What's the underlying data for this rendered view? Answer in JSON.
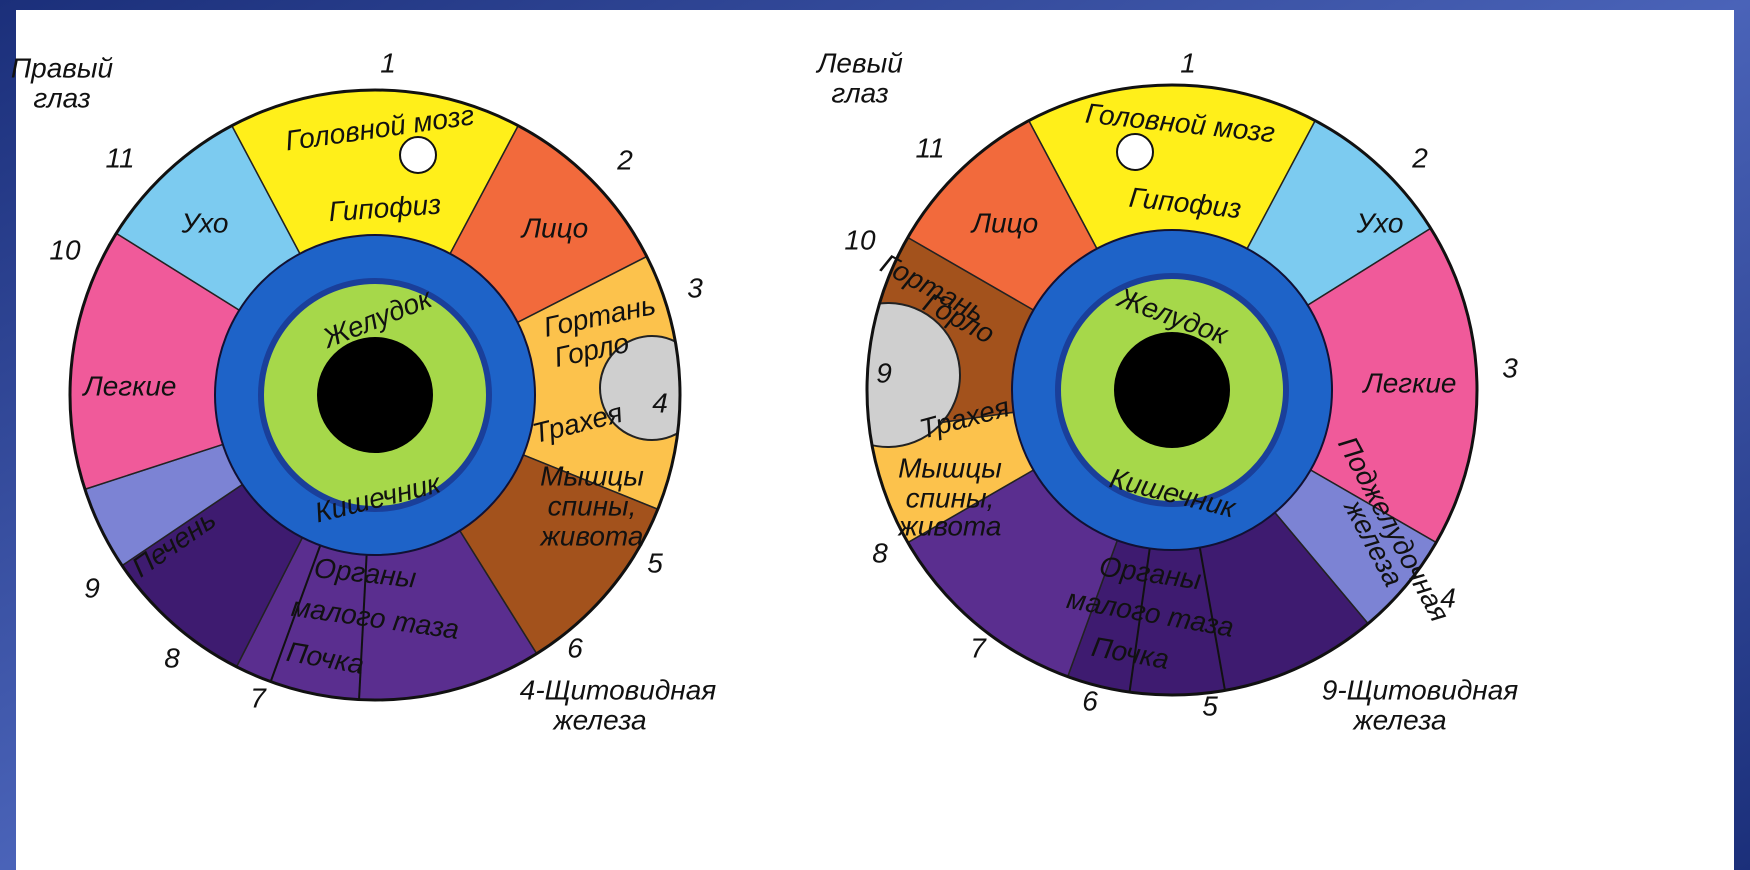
{
  "left_eye": {
    "title": [
      "Правый",
      "глаз"
    ],
    "numbers": [
      "1",
      "2",
      "3",
      "5",
      "6",
      "7",
      "8",
      "9",
      "10",
      "11"
    ],
    "labels": [
      "Головной мозг",
      "Гипофиз",
      "Лицо",
      "Гортань",
      "Горло",
      "Трахея",
      "4",
      "Мышцы",
      "спины,",
      "живота",
      "Органы",
      "малого таза",
      "Почка",
      "Печень",
      "Легкие",
      "Ухо",
      "Желудок",
      "Кишечник"
    ],
    "note": [
      "4-Щитовидная",
      "железа"
    ]
  },
  "right_eye": {
    "title": [
      "Левый",
      "глаз"
    ],
    "numbers": [
      "1",
      "2",
      "3",
      "4",
      "5",
      "6",
      "7",
      "8",
      "10",
      "11"
    ],
    "labels": [
      "Головной мозг",
      "Гипофиз",
      "Ухо",
      "Лицо",
      "Гортань",
      "Горло",
      "Трахея",
      "9",
      "Легкие",
      "Поджелудочная",
      "железа",
      "Мышцы",
      "спины,",
      "живота",
      "Органы",
      "малого таза",
      "Почка",
      "Желудок",
      "Кишечник"
    ],
    "note": [
      "9-Щитовидная",
      "железа"
    ]
  }
}
